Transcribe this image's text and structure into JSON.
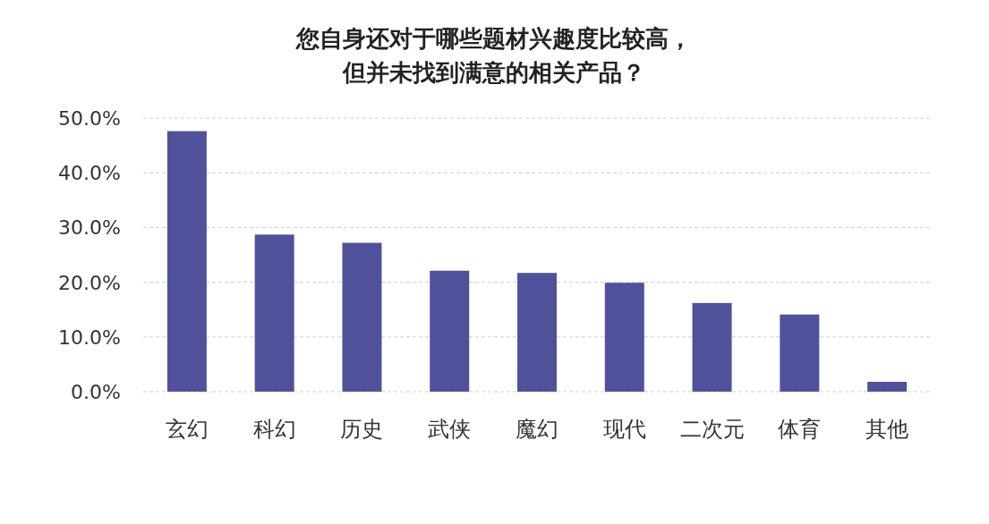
{
  "chart_data": {
    "type": "bar",
    "title": "您自身还对于哪些题材兴趣度比较高，但并未找到满意的相关产品？",
    "categories": [
      "玄幻",
      "科幻",
      "历史",
      "武侠",
      "魔幻",
      "现代",
      "二次元",
      "体育",
      "其他"
    ],
    "values": [
      47.6,
      28.7,
      27.2,
      22.1,
      21.7,
      19.9,
      16.2,
      14.1,
      1.8
    ],
    "color": "#4f529b",
    "ylim": [
      0,
      50
    ],
    "yticks": [
      {
        "value": 0,
        "label": "0.0%"
      },
      {
        "value": 10,
        "label": "10.0%"
      },
      {
        "value": 20,
        "label": "20.0%"
      },
      {
        "value": 30,
        "label": "30.0%"
      },
      {
        "value": 40,
        "label": "40.0%"
      },
      {
        "value": 50,
        "label": "50.0%"
      }
    ],
    "grid": "y"
  }
}
